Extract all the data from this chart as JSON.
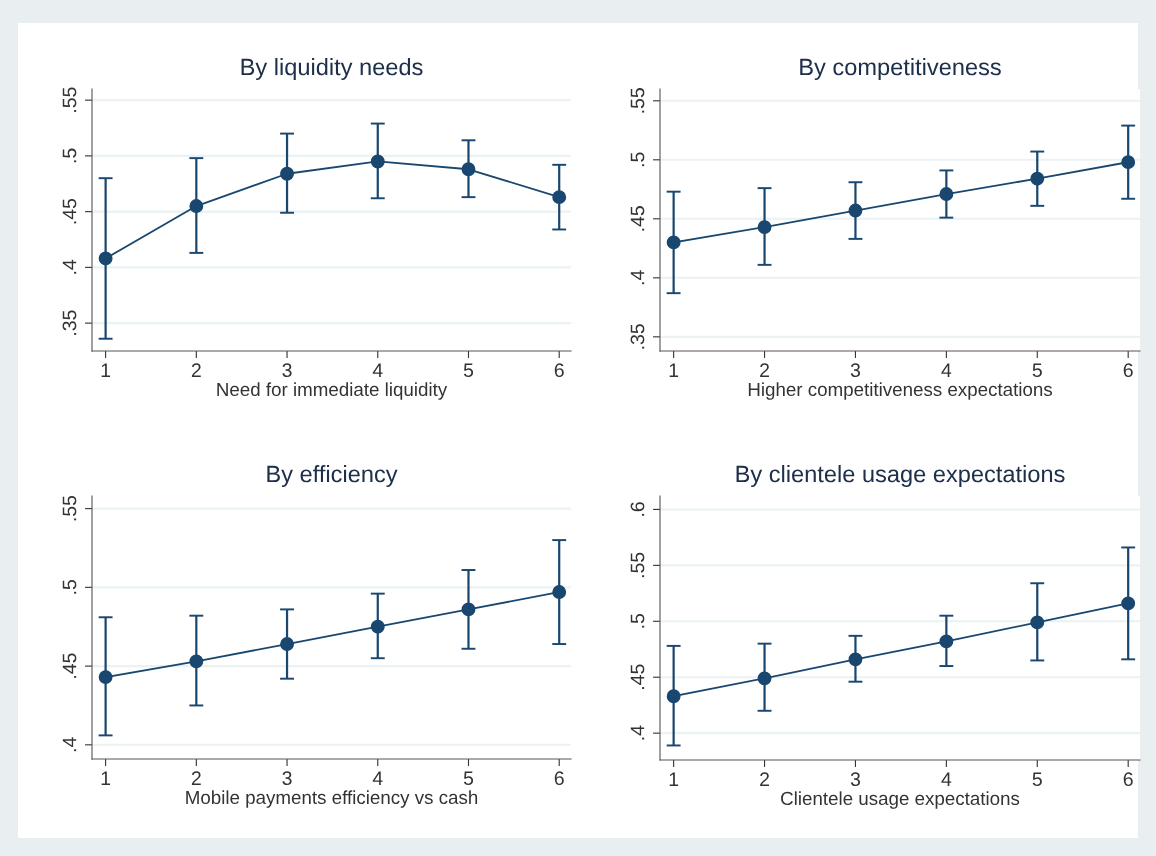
{
  "chart_data": [
    {
      "type": "line",
      "title": "By liquidity needs",
      "xlabel": "Need for immediate liquidity",
      "x": [
        1,
        2,
        3,
        4,
        5,
        6
      ],
      "series": [
        {
          "color": "#1a476f",
          "values": [
            0.408,
            0.455,
            0.484,
            0.495,
            0.488,
            0.463
          ],
          "errors": [
            [
              0.336,
              0.48
            ],
            [
              0.413,
              0.498
            ],
            [
              0.449,
              0.52
            ],
            [
              0.462,
              0.529
            ],
            [
              0.463,
              0.514
            ],
            [
              0.434,
              0.492
            ]
          ]
        }
      ],
      "xlim": [
        0.85,
        6.13
      ],
      "xticks": [
        1,
        2,
        3,
        4,
        5,
        6
      ],
      "ylim": [
        0.325,
        0.56
      ],
      "yticks": [
        {
          "value": 0.35,
          "label": ".35"
        },
        {
          "value": 0.4,
          "label": ".4"
        },
        {
          "value": 0.45,
          "label": ".45"
        },
        {
          "value": 0.5,
          "label": ".5"
        },
        {
          "value": 0.55,
          "label": ".55"
        }
      ],
      "grid": "y",
      "marker": "circle",
      "line_style": "solid"
    },
    {
      "type": "line",
      "title": "By competitiveness",
      "xlabel": "Higher competitiveness expectations",
      "x": [
        1,
        2,
        3,
        4,
        5,
        6
      ],
      "series": [
        {
          "color": "#1a476f",
          "values": [
            0.43,
            0.443,
            0.457,
            0.471,
            0.484,
            0.498
          ],
          "errors": [
            [
              0.387,
              0.473
            ],
            [
              0.411,
              0.476
            ],
            [
              0.433,
              0.481
            ],
            [
              0.451,
              0.491
            ],
            [
              0.461,
              0.507
            ],
            [
              0.467,
              0.529
            ]
          ]
        }
      ],
      "xlim": [
        0.85,
        6.13
      ],
      "xticks": [
        1,
        2,
        3,
        4,
        5,
        6
      ],
      "ylim": [
        0.338,
        0.56
      ],
      "yticks": [
        {
          "value": 0.35,
          "label": ".35"
        },
        {
          "value": 0.4,
          "label": ".4"
        },
        {
          "value": 0.45,
          "label": ".45"
        },
        {
          "value": 0.5,
          "label": ".5"
        },
        {
          "value": 0.55,
          "label": ".55"
        }
      ],
      "grid": "y",
      "marker": "circle",
      "line_style": "solid"
    },
    {
      "type": "line",
      "title": "By efficiency",
      "xlabel": "Mobile payments efficiency vs cash",
      "x": [
        1,
        2,
        3,
        4,
        5,
        6
      ],
      "series": [
        {
          "color": "#1a476f",
          "values": [
            0.443,
            0.453,
            0.464,
            0.475,
            0.486,
            0.497
          ],
          "errors": [
            [
              0.406,
              0.481
            ],
            [
              0.425,
              0.482
            ],
            [
              0.442,
              0.486
            ],
            [
              0.455,
              0.496
            ],
            [
              0.461,
              0.511
            ],
            [
              0.464,
              0.53
            ]
          ]
        }
      ],
      "xlim": [
        0.85,
        6.13
      ],
      "xticks": [
        1,
        2,
        3,
        4,
        5,
        6
      ],
      "ylim": [
        0.391,
        0.558
      ],
      "yticks": [
        {
          "value": 0.4,
          "label": ".4"
        },
        {
          "value": 0.45,
          "label": ".45"
        },
        {
          "value": 0.5,
          "label": ".5"
        },
        {
          "value": 0.55,
          "label": ".55"
        }
      ],
      "grid": "y",
      "marker": "circle",
      "line_style": "solid"
    },
    {
      "type": "line",
      "title": "By clientele usage expectations",
      "xlabel": "Clientele usage expectations",
      "x": [
        1,
        2,
        3,
        4,
        5,
        6
      ],
      "series": [
        {
          "color": "#1a476f",
          "values": [
            0.433,
            0.449,
            0.466,
            0.482,
            0.499,
            0.516
          ],
          "errors": [
            [
              0.389,
              0.478
            ],
            [
              0.42,
              0.48
            ],
            [
              0.446,
              0.487
            ],
            [
              0.46,
              0.505
            ],
            [
              0.465,
              0.534
            ],
            [
              0.466,
              0.566
            ]
          ]
        }
      ],
      "xlim": [
        0.85,
        6.13
      ],
      "xticks": [
        1,
        2,
        3,
        4,
        5,
        6
      ],
      "ylim": [
        0.376,
        0.612
      ],
      "yticks": [
        {
          "value": 0.4,
          "label": ".4"
        },
        {
          "value": 0.45,
          "label": ".45"
        },
        {
          "value": 0.5,
          "label": ".5"
        },
        {
          "value": 0.55,
          "label": ".55"
        },
        {
          "value": 0.6,
          "label": ".6"
        }
      ],
      "grid": "y",
      "marker": "circle",
      "line_style": "solid"
    }
  ]
}
